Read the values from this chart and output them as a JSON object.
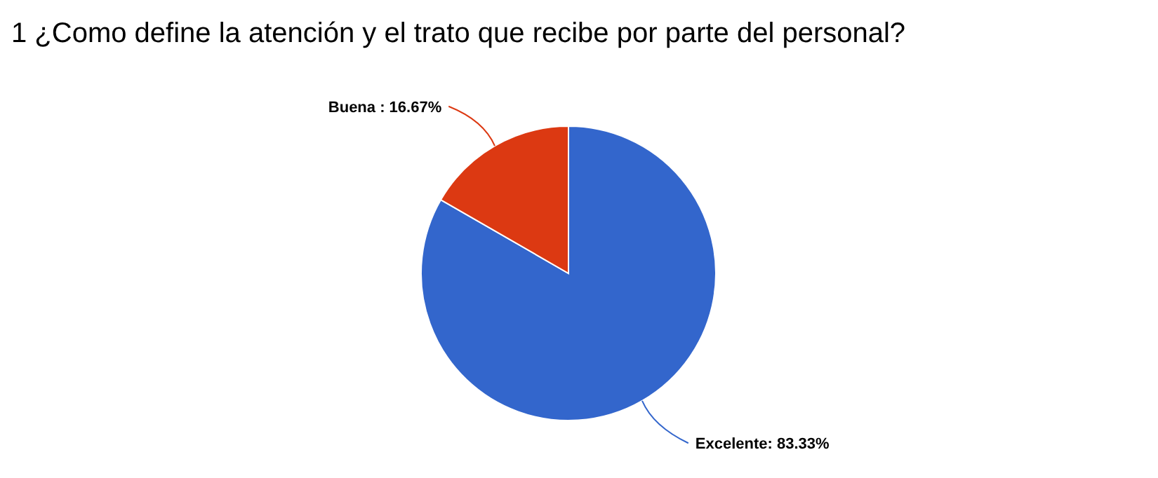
{
  "chart_data": {
    "type": "pie",
    "title": "1 ¿Como define la atención y el trato que recibe por parte del personal?",
    "categories": [
      "Excelente",
      "Buena"
    ],
    "values": [
      83.33,
      16.67
    ],
    "colors": [
      "#3366cc",
      "#dc3912"
    ],
    "value_labels": [
      ": 83.33%",
      " : 16.67%"
    ],
    "legend": false
  }
}
